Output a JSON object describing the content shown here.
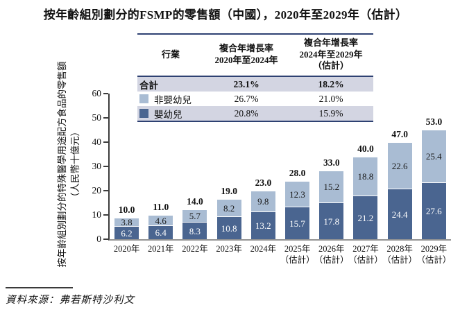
{
  "title": "按年齡組別劃分的FSMP的零售額（中國），2020年至2029年（估計）",
  "source": "資料來源：弗若斯特沙利文",
  "colors": {
    "infant": "#4A6590",
    "non_infant": "#A9BCD3",
    "row_shade": "#D3D5E2",
    "table_rule": "#2E4172"
  },
  "growth_table": {
    "headers": [
      "行業",
      "複合年增長率\n2020年至2024年",
      "複合年增長率\n2024年至2029年\n（估計）"
    ],
    "rows": [
      {
        "label": "合計",
        "cagr_2020_2024": "23.1%",
        "cagr_2024_2029": "18.2%"
      },
      {
        "label": "非嬰幼兒",
        "cagr_2020_2024": "26.7%",
        "cagr_2024_2029": "21.0%"
      },
      {
        "label": "嬰幼兒",
        "cagr_2020_2024": "20.8%",
        "cagr_2024_2029": "15.9%"
      }
    ]
  },
  "chart_data": {
    "type": "bar",
    "stacked": true,
    "title": "按年齡組別劃分的FSMP的零售額（中國），2020年至2029年（估計）",
    "categories": [
      "2020年",
      "2021年",
      "2022年",
      "2023年",
      "2024年",
      "2025年\n（估計）",
      "2026年\n（估計）",
      "2027年\n（估計）",
      "2028年\n（估計）",
      "2029年\n（估計）"
    ],
    "series": [
      {
        "name": "嬰幼兒",
        "color": "#4A6590",
        "values": [
          6.2,
          6.4,
          8.3,
          10.8,
          13.2,
          15.7,
          17.8,
          21.2,
          24.4,
          27.6
        ]
      },
      {
        "name": "非嬰幼兒",
        "color": "#A9BCD3",
        "values": [
          3.8,
          4.6,
          5.7,
          8.2,
          9.8,
          12.3,
          15.2,
          18.8,
          22.6,
          25.4
        ]
      }
    ],
    "totals": [
      10.0,
      11.0,
      14.0,
      19.0,
      23.0,
      28.0,
      33.0,
      40.0,
      47.0,
      53.0
    ],
    "ylabel": "按年齡組別劃分的特殊醫學用途配方食品的零售額",
    "ylabel_unit": "（人民幣十億元）",
    "yticks": [
      0,
      10,
      20,
      30,
      40,
      50,
      60
    ],
    "ylim": [
      0,
      60
    ],
    "grid": false,
    "legend_position": "top-table-overlay"
  }
}
